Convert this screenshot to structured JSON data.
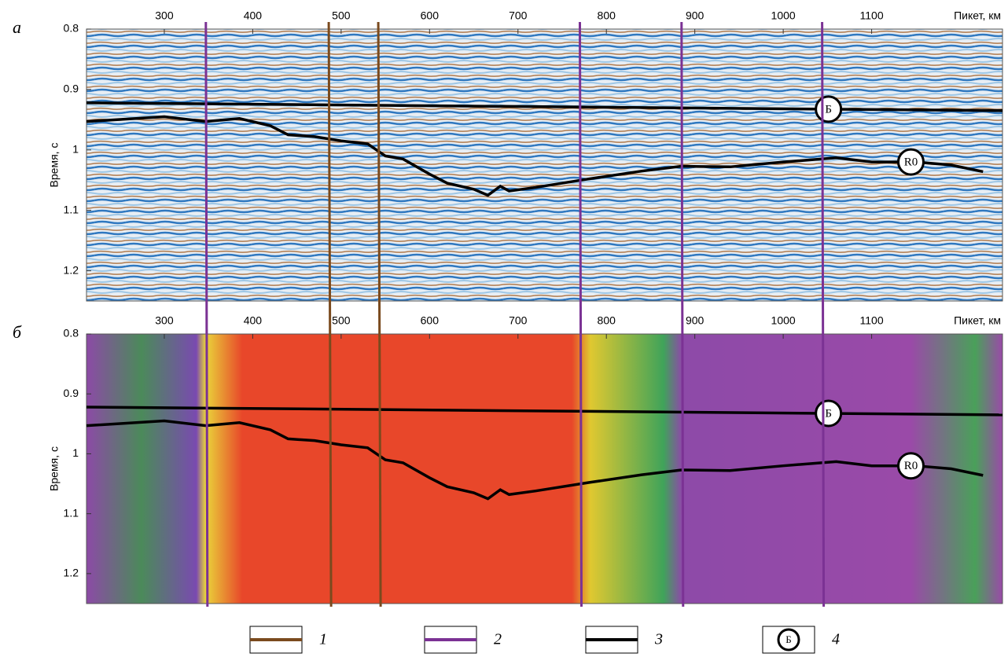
{
  "chart_data": [
    {
      "type": "line",
      "panel_label": "а",
      "x_label": "Пикет, км",
      "y_label": "Время, с",
      "xlim": [
        212,
        1248
      ],
      "ylim": [
        0.8,
        1.25
      ],
      "y_reversed": true,
      "xticks": [
        300,
        400,
        500,
        600,
        700,
        800,
        900,
        1000,
        1100
      ],
      "yticks": [
        0.8,
        0.9,
        1,
        1.1,
        1.2
      ],
      "series": [
        {
          "name": "Б",
          "color": "#000000",
          "x": [
            212,
            1248
          ],
          "values": [
            0.922,
            0.935
          ]
        },
        {
          "name": "R0",
          "color": "#000000",
          "x": [
            212,
            300,
            347,
            385,
            420,
            440,
            470,
            500,
            530,
            550,
            570,
            600,
            620,
            650,
            666,
            680,
            690,
            720,
            780,
            840,
            885,
            940,
            1000,
            1060,
            1100,
            1150,
            1190,
            1226
          ],
          "values": [
            0.953,
            0.945,
            0.953,
            0.948,
            0.96,
            0.975,
            0.978,
            0.985,
            0.99,
            1.01,
            1.015,
            1.04,
            1.055,
            1.065,
            1.075,
            1.06,
            1.068,
            1.062,
            1.048,
            1.035,
            1.027,
            1.028,
            1.02,
            1.013,
            1.02,
            1.02,
            1.025,
            1.036
          ]
        }
      ]
    },
    {
      "type": "line",
      "panel_label": "б",
      "x_label": "Пикет, км",
      "y_label": "Время, с",
      "xlim": [
        212,
        1248
      ],
      "ylim": [
        0.8,
        1.25
      ],
      "y_reversed": true,
      "xticks": [
        300,
        400,
        500,
        600,
        700,
        800,
        900,
        1000,
        1100
      ],
      "yticks": [
        0.8,
        0.9,
        1,
        1.1,
        1.2
      ],
      "series": [
        {
          "name": "Б",
          "color": "#000000",
          "x": [
            212,
            1248
          ],
          "values": [
            0.922,
            0.935
          ]
        },
        {
          "name": "R0",
          "color": "#000000",
          "x": [
            212,
            300,
            347,
            385,
            420,
            440,
            470,
            500,
            530,
            550,
            570,
            600,
            620,
            650,
            666,
            680,
            690,
            720,
            780,
            840,
            885,
            940,
            1000,
            1060,
            1100,
            1150,
            1190,
            1226
          ],
          "values": [
            0.953,
            0.945,
            0.953,
            0.948,
            0.96,
            0.975,
            0.978,
            0.985,
            0.99,
            1.01,
            1.015,
            1.04,
            1.055,
            1.065,
            1.075,
            1.06,
            1.068,
            1.062,
            1.048,
            1.035,
            1.027,
            1.028,
            1.02,
            1.013,
            1.02,
            1.02,
            1.025,
            1.036
          ]
        }
      ]
    }
  ],
  "boundaries": [
    {
      "color": "#7b3294",
      "values": [
        347,
        770,
        885,
        1044
      ]
    },
    {
      "color": "#7a4a1e",
      "values": [
        486,
        542
      ]
    }
  ],
  "legend": [
    {
      "label": "1",
      "color": "#7a4a1e"
    },
    {
      "label": "2",
      "color": "#7b3294"
    },
    {
      "label": "3",
      "color": "#000000"
    },
    {
      "label": "4",
      "symbol": "Б"
    }
  ]
}
